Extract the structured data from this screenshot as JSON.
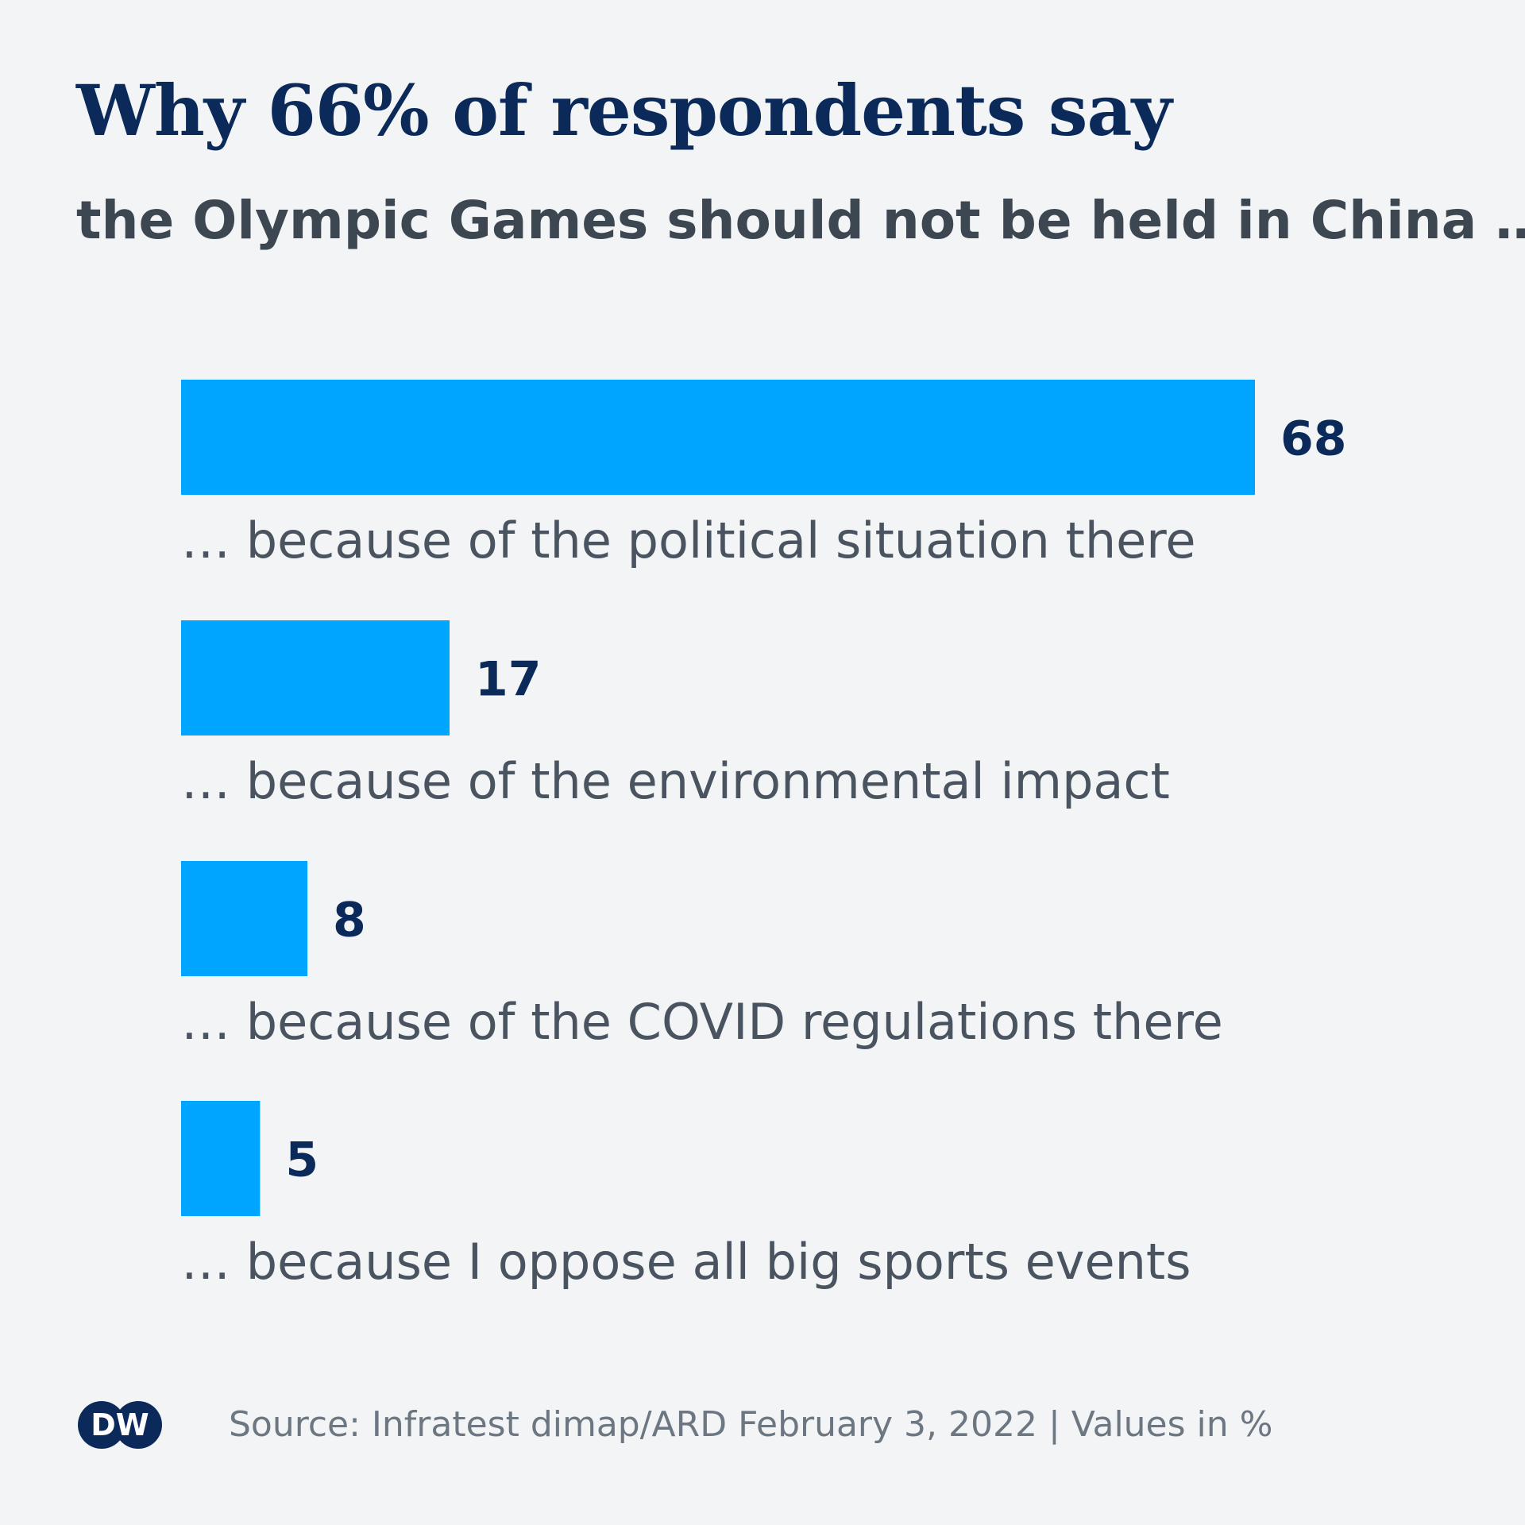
{
  "title": "Why 66% of respondents say",
  "subtitle": "the Olympic Games should not be held in China …",
  "chart_data": {
    "type": "bar",
    "orientation": "horizontal",
    "title": "Why 66% of respondents say",
    "subtitle": "the Olympic Games should not be held in China …",
    "categories": [
      "… because of the political situation there",
      "… because of the environmental impact",
      "… because of the COVID regulations there",
      "… because I oppose all big sports events"
    ],
    "values": [
      68,
      17,
      8,
      5
    ],
    "data_labels": [
      "68",
      "17",
      "8",
      "5"
    ],
    "unit": "%",
    "xlim": [
      0,
      68
    ],
    "grid": false,
    "legend": "none",
    "bar_color": "#00a5ff"
  },
  "colors": {
    "background": "#f2f4f6",
    "accent": "#00a5ff",
    "title": "#0b2a5a",
    "text": "#4a5460",
    "footer": "#6d7781"
  },
  "footer": {
    "logo_text": "DW",
    "source": "Source: Infratest dimap/ARD February 3, 2022 | Values in %"
  }
}
